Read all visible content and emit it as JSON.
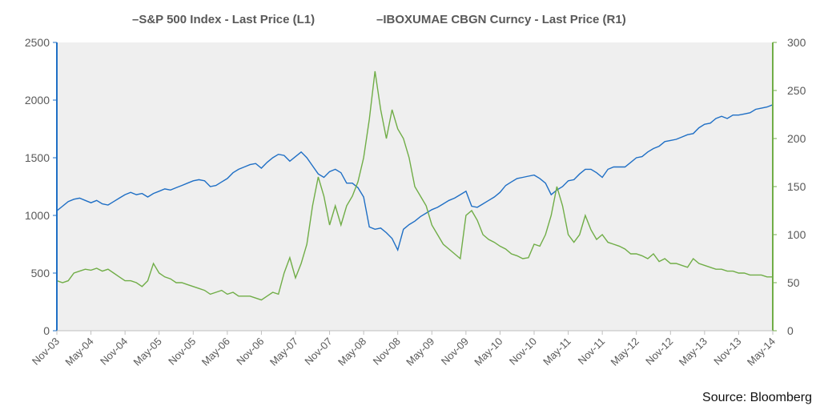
{
  "chart_data": {
    "type": "line",
    "legend_position": "top-center",
    "grid": false,
    "background": "#efefef",
    "x_tick_labels": [
      "Nov-03",
      "May-04",
      "Nov-04",
      "May-05",
      "Nov-05",
      "May-06",
      "Nov-06",
      "May-07",
      "Nov-07",
      "May-08",
      "Nov-08",
      "May-09",
      "Nov-09",
      "May-10",
      "Nov-10",
      "May-11",
      "Nov-11",
      "May-12",
      "Nov-12",
      "May-13",
      "Nov-13",
      "May-14"
    ],
    "y_left": {
      "ticks": [
        "0",
        "500",
        "1000",
        "1500",
        "2000",
        "2500"
      ],
      "range": [
        0,
        2500
      ],
      "color": "#1f6fc5"
    },
    "y_right": {
      "ticks": [
        "0",
        "50",
        "100",
        "150",
        "200",
        "250",
        "300"
      ],
      "range": [
        0,
        300
      ],
      "color": "#70ad47"
    },
    "x_range_months": [
      0,
      126
    ],
    "series": [
      {
        "name": "S&P 500 Index - Last Price (L1)",
        "legend_label": "–S&P 500 Index - Last Price (L1)",
        "axis": "left",
        "color": "#1f6fc5",
        "points": [
          [
            0,
            1040
          ],
          [
            1,
            1080
          ],
          [
            2,
            1120
          ],
          [
            3,
            1140
          ],
          [
            4,
            1150
          ],
          [
            5,
            1130
          ],
          [
            6,
            1110
          ],
          [
            7,
            1130
          ],
          [
            8,
            1100
          ],
          [
            9,
            1090
          ],
          [
            10,
            1120
          ],
          [
            11,
            1150
          ],
          [
            12,
            1180
          ],
          [
            13,
            1200
          ],
          [
            14,
            1180
          ],
          [
            15,
            1190
          ],
          [
            16,
            1160
          ],
          [
            17,
            1190
          ],
          [
            18,
            1210
          ],
          [
            19,
            1230
          ],
          [
            20,
            1220
          ],
          [
            21,
            1240
          ],
          [
            22,
            1260
          ],
          [
            23,
            1280
          ],
          [
            24,
            1300
          ],
          [
            25,
            1310
          ],
          [
            26,
            1300
          ],
          [
            27,
            1250
          ],
          [
            28,
            1260
          ],
          [
            29,
            1290
          ],
          [
            30,
            1320
          ],
          [
            31,
            1370
          ],
          [
            32,
            1400
          ],
          [
            33,
            1420
          ],
          [
            34,
            1440
          ],
          [
            35,
            1450
          ],
          [
            36,
            1410
          ],
          [
            37,
            1460
          ],
          [
            38,
            1500
          ],
          [
            39,
            1530
          ],
          [
            40,
            1520
          ],
          [
            41,
            1470
          ],
          [
            42,
            1510
          ],
          [
            43,
            1550
          ],
          [
            44,
            1500
          ],
          [
            45,
            1430
          ],
          [
            46,
            1360
          ],
          [
            47,
            1330
          ],
          [
            48,
            1380
          ],
          [
            49,
            1400
          ],
          [
            50,
            1370
          ],
          [
            51,
            1280
          ],
          [
            52,
            1280
          ],
          [
            53,
            1240
          ],
          [
            54,
            1160
          ],
          [
            55,
            900
          ],
          [
            56,
            880
          ],
          [
            57,
            890
          ],
          [
            58,
            850
          ],
          [
            59,
            800
          ],
          [
            60,
            700
          ],
          [
            61,
            880
          ],
          [
            62,
            920
          ],
          [
            63,
            950
          ],
          [
            64,
            990
          ],
          [
            65,
            1020
          ],
          [
            66,
            1050
          ],
          [
            67,
            1070
          ],
          [
            68,
            1100
          ],
          [
            69,
            1130
          ],
          [
            70,
            1150
          ],
          [
            71,
            1180
          ],
          [
            72,
            1210
          ],
          [
            73,
            1080
          ],
          [
            74,
            1070
          ],
          [
            75,
            1100
          ],
          [
            76,
            1130
          ],
          [
            77,
            1160
          ],
          [
            78,
            1200
          ],
          [
            79,
            1260
          ],
          [
            80,
            1290
          ],
          [
            81,
            1320
          ],
          [
            82,
            1330
          ],
          [
            83,
            1340
          ],
          [
            84,
            1350
          ],
          [
            85,
            1320
          ],
          [
            86,
            1280
          ],
          [
            87,
            1180
          ],
          [
            88,
            1220
          ],
          [
            89,
            1250
          ],
          [
            90,
            1300
          ],
          [
            91,
            1310
          ],
          [
            92,
            1360
          ],
          [
            93,
            1400
          ],
          [
            94,
            1400
          ],
          [
            95,
            1370
          ],
          [
            96,
            1330
          ],
          [
            97,
            1400
          ],
          [
            98,
            1420
          ],
          [
            99,
            1420
          ],
          [
            100,
            1420
          ],
          [
            101,
            1460
          ],
          [
            102,
            1500
          ],
          [
            103,
            1510
          ],
          [
            104,
            1550
          ],
          [
            105,
            1580
          ],
          [
            106,
            1600
          ],
          [
            107,
            1640
          ],
          [
            108,
            1650
          ],
          [
            109,
            1660
          ],
          [
            110,
            1680
          ],
          [
            111,
            1700
          ],
          [
            112,
            1710
          ],
          [
            113,
            1760
          ],
          [
            114,
            1790
          ],
          [
            115,
            1800
          ],
          [
            116,
            1840
          ],
          [
            117,
            1860
          ],
          [
            118,
            1840
          ],
          [
            119,
            1870
          ],
          [
            120,
            1870
          ],
          [
            121,
            1880
          ],
          [
            122,
            1890
          ],
          [
            123,
            1920
          ],
          [
            124,
            1930
          ],
          [
            125,
            1940
          ],
          [
            126,
            1960
          ]
        ]
      },
      {
        "name": "IBOXUMAE CBGN Curncy - Last Price (R1)",
        "legend_label": "–IBOXUMAE CBGN Curncy - Last Price (R1)",
        "axis": "right",
        "color": "#70ad47",
        "points": [
          [
            0,
            52
          ],
          [
            1,
            50
          ],
          [
            2,
            52
          ],
          [
            3,
            60
          ],
          [
            4,
            62
          ],
          [
            5,
            64
          ],
          [
            6,
            63
          ],
          [
            7,
            65
          ],
          [
            8,
            62
          ],
          [
            9,
            64
          ],
          [
            10,
            60
          ],
          [
            11,
            56
          ],
          [
            12,
            52
          ],
          [
            13,
            52
          ],
          [
            14,
            50
          ],
          [
            15,
            46
          ],
          [
            16,
            52
          ],
          [
            17,
            70
          ],
          [
            18,
            60
          ],
          [
            19,
            56
          ],
          [
            20,
            54
          ],
          [
            21,
            50
          ],
          [
            22,
            50
          ],
          [
            23,
            48
          ],
          [
            24,
            46
          ],
          [
            25,
            44
          ],
          [
            26,
            42
          ],
          [
            27,
            38
          ],
          [
            28,
            40
          ],
          [
            29,
            42
          ],
          [
            30,
            38
          ],
          [
            31,
            40
          ],
          [
            32,
            36
          ],
          [
            33,
            36
          ],
          [
            34,
            36
          ],
          [
            35,
            34
          ],
          [
            36,
            32
          ],
          [
            37,
            36
          ],
          [
            38,
            40
          ],
          [
            39,
            38
          ],
          [
            40,
            60
          ],
          [
            41,
            76
          ],
          [
            42,
            55
          ],
          [
            43,
            70
          ],
          [
            44,
            90
          ],
          [
            45,
            130
          ],
          [
            46,
            160
          ],
          [
            47,
            140
          ],
          [
            48,
            110
          ],
          [
            49,
            130
          ],
          [
            50,
            110
          ],
          [
            51,
            130
          ],
          [
            52,
            140
          ],
          [
            53,
            155
          ],
          [
            54,
            180
          ],
          [
            55,
            220
          ],
          [
            56,
            270
          ],
          [
            57,
            230
          ],
          [
            58,
            200
          ],
          [
            59,
            230
          ],
          [
            60,
            210
          ],
          [
            61,
            200
          ],
          [
            62,
            180
          ],
          [
            63,
            150
          ],
          [
            64,
            140
          ],
          [
            65,
            130
          ],
          [
            66,
            110
          ],
          [
            67,
            100
          ],
          [
            68,
            90
          ],
          [
            69,
            85
          ],
          [
            70,
            80
          ],
          [
            71,
            75
          ],
          [
            72,
            120
          ],
          [
            73,
            125
          ],
          [
            74,
            115
          ],
          [
            75,
            100
          ],
          [
            76,
            95
          ],
          [
            77,
            92
          ],
          [
            78,
            88
          ],
          [
            79,
            85
          ],
          [
            80,
            80
          ],
          [
            81,
            78
          ],
          [
            82,
            75
          ],
          [
            83,
            76
          ],
          [
            84,
            90
          ],
          [
            85,
            88
          ],
          [
            86,
            100
          ],
          [
            87,
            120
          ],
          [
            88,
            150
          ],
          [
            89,
            130
          ],
          [
            90,
            100
          ],
          [
            91,
            92
          ],
          [
            92,
            100
          ],
          [
            93,
            120
          ],
          [
            94,
            105
          ],
          [
            95,
            95
          ],
          [
            96,
            100
          ],
          [
            97,
            92
          ],
          [
            98,
            90
          ],
          [
            99,
            88
          ],
          [
            100,
            85
          ],
          [
            101,
            80
          ],
          [
            102,
            80
          ],
          [
            103,
            78
          ],
          [
            104,
            75
          ],
          [
            105,
            80
          ],
          [
            106,
            72
          ],
          [
            107,
            75
          ],
          [
            108,
            70
          ],
          [
            109,
            70
          ],
          [
            110,
            68
          ],
          [
            111,
            66
          ],
          [
            112,
            75
          ],
          [
            113,
            70
          ],
          [
            114,
            68
          ],
          [
            115,
            66
          ],
          [
            116,
            64
          ],
          [
            117,
            64
          ],
          [
            118,
            62
          ],
          [
            119,
            62
          ],
          [
            120,
            60
          ],
          [
            121,
            60
          ],
          [
            122,
            58
          ],
          [
            123,
            58
          ],
          [
            124,
            58
          ],
          [
            125,
            56
          ],
          [
            126,
            56
          ]
        ]
      }
    ]
  },
  "source": "Source:  Bloomberg"
}
